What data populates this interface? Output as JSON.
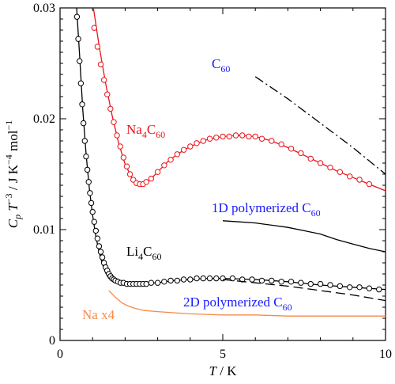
{
  "chart_data": {
    "type": "line",
    "title": "",
    "xlabel": {
      "var": "T",
      "unit": " / K"
    },
    "ylabel": {
      "var": "C",
      "sub": "p",
      "rest1": " T",
      "sup1": "−3",
      "rest2": " / J K",
      "sup2": "−4",
      "rest3": " mol",
      "sup3": "−1"
    },
    "xlim": [
      0,
      10
    ],
    "ylim": [
      0,
      0.03
    ],
    "x_ticks": [
      0,
      5,
      10
    ],
    "y_ticks": [
      0,
      0.01,
      0.02,
      0.03
    ],
    "x_tick_labels": [
      "0",
      "5",
      "10"
    ],
    "y_tick_labels": [
      "0",
      "0.01",
      "0.02",
      "0.03"
    ],
    "grid": false,
    "series": [
      {
        "id": "na4c60",
        "name": "Na4C60",
        "color": "#e8141b",
        "style": "solid",
        "markers": true,
        "line_points": [
          [
            1.0,
            0.0305
          ],
          [
            1.05,
            0.0295
          ],
          [
            1.2,
            0.0266
          ],
          [
            1.4,
            0.0232
          ],
          [
            1.6,
            0.0203
          ],
          [
            1.8,
            0.0178
          ],
          [
            2.0,
            0.0159
          ],
          [
            2.2,
            0.0147
          ],
          [
            2.4,
            0.0142
          ],
          [
            2.6,
            0.0142
          ],
          [
            2.8,
            0.0146
          ],
          [
            3.0,
            0.0152
          ],
          [
            3.3,
            0.0161
          ],
          [
            3.6,
            0.0168
          ],
          [
            4.0,
            0.0175
          ],
          [
            4.5,
            0.0181
          ],
          [
            5.0,
            0.0184
          ],
          [
            5.5,
            0.0185
          ],
          [
            6.0,
            0.0184
          ],
          [
            6.5,
            0.018
          ],
          [
            7.0,
            0.0174
          ],
          [
            7.5,
            0.0167
          ],
          [
            8.0,
            0.016
          ],
          [
            8.5,
            0.0153
          ],
          [
            9.0,
            0.0147
          ],
          [
            9.5,
            0.0141
          ],
          [
            10.0,
            0.0135
          ]
        ],
        "marker_points": [
          [
            1.05,
            0.0282
          ],
          [
            1.15,
            0.0265
          ],
          [
            1.25,
            0.0249
          ],
          [
            1.35,
            0.0235
          ],
          [
            1.45,
            0.0222
          ],
          [
            1.55,
            0.0209
          ],
          [
            1.65,
            0.0197
          ],
          [
            1.75,
            0.0185
          ],
          [
            1.85,
            0.0175
          ],
          [
            1.95,
            0.0165
          ],
          [
            2.05,
            0.0157
          ],
          [
            2.15,
            0.015
          ],
          [
            2.25,
            0.0145
          ],
          [
            2.35,
            0.0142
          ],
          [
            2.45,
            0.0141
          ],
          [
            2.55,
            0.0141
          ],
          [
            2.65,
            0.0143
          ],
          [
            2.8,
            0.0146
          ],
          [
            3.0,
            0.0152
          ],
          [
            3.2,
            0.0158
          ],
          [
            3.4,
            0.0163
          ],
          [
            3.6,
            0.0168
          ],
          [
            3.8,
            0.0172
          ],
          [
            4.0,
            0.0175
          ],
          [
            4.2,
            0.0178
          ],
          [
            4.4,
            0.018
          ],
          [
            4.6,
            0.0182
          ],
          [
            4.8,
            0.0183
          ],
          [
            5.0,
            0.0184
          ],
          [
            5.2,
            0.0184
          ],
          [
            5.4,
            0.0185
          ],
          [
            5.6,
            0.0185
          ],
          [
            5.8,
            0.0184
          ],
          [
            6.0,
            0.0184
          ],
          [
            6.2,
            0.0182
          ],
          [
            6.5,
            0.018
          ],
          [
            6.8,
            0.0177
          ],
          [
            7.1,
            0.0173
          ],
          [
            7.4,
            0.0169
          ],
          [
            7.7,
            0.0164
          ],
          [
            8.0,
            0.016
          ],
          [
            8.3,
            0.0156
          ],
          [
            8.6,
            0.0152
          ],
          [
            8.9,
            0.0148
          ],
          [
            9.2,
            0.0145
          ],
          [
            9.5,
            0.0141
          ]
        ]
      },
      {
        "id": "li4c60",
        "name": "Li4C60",
        "color": "#000000",
        "style": "solid",
        "markers": true,
        "line_points": [
          [
            0.5,
            0.0305
          ],
          [
            0.6,
            0.0258
          ],
          [
            0.7,
            0.0208
          ],
          [
            0.8,
            0.0168
          ],
          [
            0.9,
            0.0137
          ],
          [
            1.0,
            0.0113
          ],
          [
            1.1,
            0.0094
          ],
          [
            1.2,
            0.008
          ],
          [
            1.3,
            0.0069
          ],
          [
            1.4,
            0.0061
          ],
          [
            1.5,
            0.0056
          ],
          [
            1.7,
            0.0053
          ],
          [
            2.0,
            0.0051
          ],
          [
            2.5,
            0.0051
          ],
          [
            3.0,
            0.0052
          ],
          [
            3.5,
            0.0054
          ],
          [
            4.0,
            0.0055
          ],
          [
            4.5,
            0.0056
          ],
          [
            5.0,
            0.0056
          ],
          [
            6.0,
            0.0055
          ],
          [
            7.0,
            0.0053
          ],
          [
            8.0,
            0.005
          ],
          [
            9.0,
            0.0048
          ],
          [
            10.0,
            0.0046
          ]
        ],
        "marker_points": [
          [
            0.52,
            0.0292
          ],
          [
            0.56,
            0.0272
          ],
          [
            0.6,
            0.0252
          ],
          [
            0.64,
            0.0232
          ],
          [
            0.68,
            0.0213
          ],
          [
            0.72,
            0.0196
          ],
          [
            0.76,
            0.018
          ],
          [
            0.8,
            0.0166
          ],
          [
            0.84,
            0.0154
          ],
          [
            0.88,
            0.0143
          ],
          [
            0.92,
            0.0133
          ],
          [
            0.96,
            0.0124
          ],
          [
            1.0,
            0.0116
          ],
          [
            1.05,
            0.0107
          ],
          [
            1.1,
            0.0099
          ],
          [
            1.15,
            0.0092
          ],
          [
            1.2,
            0.0085
          ],
          [
            1.25,
            0.008
          ],
          [
            1.3,
            0.0075
          ],
          [
            1.35,
            0.007
          ],
          [
            1.4,
            0.0066
          ],
          [
            1.45,
            0.0063
          ],
          [
            1.5,
            0.006
          ],
          [
            1.55,
            0.0058
          ],
          [
            1.6,
            0.0056
          ],
          [
            1.65,
            0.0055
          ],
          [
            1.7,
            0.0054
          ],
          [
            1.78,
            0.0053
          ],
          [
            1.86,
            0.0052
          ],
          [
            1.95,
            0.0052
          ],
          [
            2.05,
            0.0051
          ],
          [
            2.15,
            0.0051
          ],
          [
            2.25,
            0.0051
          ],
          [
            2.35,
            0.0051
          ],
          [
            2.45,
            0.0051
          ],
          [
            2.55,
            0.0051
          ],
          [
            2.65,
            0.0051
          ],
          [
            2.8,
            0.0052
          ],
          [
            3.0,
            0.0052
          ],
          [
            3.2,
            0.0053
          ],
          [
            3.4,
            0.0054
          ],
          [
            3.6,
            0.0054
          ],
          [
            3.8,
            0.0055
          ],
          [
            4.0,
            0.0055
          ],
          [
            4.2,
            0.0056
          ],
          [
            4.4,
            0.0056
          ],
          [
            4.6,
            0.0056
          ],
          [
            4.8,
            0.0056
          ],
          [
            5.0,
            0.0056
          ],
          [
            5.3,
            0.0056
          ],
          [
            5.6,
            0.0055
          ],
          [
            5.9,
            0.0055
          ],
          [
            6.2,
            0.0054
          ],
          [
            6.5,
            0.0054
          ],
          [
            6.8,
            0.0053
          ],
          [
            7.1,
            0.0053
          ],
          [
            7.4,
            0.0052
          ],
          [
            7.7,
            0.0051
          ],
          [
            8.0,
            0.0051
          ],
          [
            8.3,
            0.005
          ],
          [
            8.6,
            0.0049
          ],
          [
            8.9,
            0.0048
          ],
          [
            9.2,
            0.0048
          ],
          [
            9.5,
            0.0047
          ],
          [
            9.8,
            0.0046
          ]
        ]
      },
      {
        "id": "c60",
        "name": "C60",
        "color": "#000000",
        "style": "dashdot",
        "markers": false,
        "line_points": [
          [
            6.0,
            0.0238
          ],
          [
            7.0,
            0.0218
          ],
          [
            8.0,
            0.0196
          ],
          [
            9.0,
            0.0174
          ],
          [
            10.0,
            0.015
          ]
        ]
      },
      {
        "id": "poly1d",
        "name": "1D polymerized C60",
        "color": "#000000",
        "style": "solid",
        "markers": false,
        "line_points": [
          [
            5.0,
            0.0108
          ],
          [
            5.5,
            0.0107
          ],
          [
            6.0,
            0.0106
          ],
          [
            6.5,
            0.0104
          ],
          [
            7.0,
            0.0102
          ],
          [
            7.5,
            0.0099
          ],
          [
            8.0,
            0.0096
          ],
          [
            8.5,
            0.0091
          ],
          [
            9.0,
            0.0087
          ],
          [
            9.5,
            0.0083
          ],
          [
            10.0,
            0.008
          ]
        ]
      },
      {
        "id": "poly2d",
        "name": "2D polymerized C60",
        "color": "#000000",
        "style": "dashed",
        "markers": false,
        "line_points": [
          [
            5.0,
            0.0055
          ],
          [
            6.0,
            0.0052
          ],
          [
            7.0,
            0.0049
          ],
          [
            8.0,
            0.0045
          ],
          [
            9.0,
            0.0041
          ],
          [
            10.0,
            0.0036
          ]
        ]
      },
      {
        "id": "nax4",
        "name": "Na x4",
        "color": "#f58a4b",
        "style": "solid",
        "markers": false,
        "line_points": [
          [
            1.5,
            0.0045
          ],
          [
            1.7,
            0.0039
          ],
          [
            1.9,
            0.0034
          ],
          [
            2.1,
            0.0031
          ],
          [
            2.3,
            0.0029
          ],
          [
            2.6,
            0.0027
          ],
          [
            3.0,
            0.0026
          ],
          [
            3.5,
            0.0025
          ],
          [
            4.0,
            0.0024
          ],
          [
            5.0,
            0.0023
          ],
          [
            6.0,
            0.0023
          ],
          [
            7.0,
            0.0022
          ],
          [
            8.0,
            0.0022
          ],
          [
            9.0,
            0.0022
          ],
          [
            10.0,
            0.0022
          ]
        ]
      }
    ],
    "annotations": [
      {
        "id": "c60",
        "color": "#1a1aff",
        "base": "C",
        "sub": "60",
        "prefix": "",
        "post": ""
      },
      {
        "id": "na4c60",
        "color": "#e8141b",
        "base": "Na",
        "sub": "4",
        "prefix": "",
        "post": "C",
        "sub2": "60"
      },
      {
        "id": "poly1d",
        "color": "#1a1aff",
        "prefix": "1D polymerized ",
        "base": "C",
        "sub": "60",
        "post": ""
      },
      {
        "id": "li4c60",
        "color": "#000000",
        "base": "Li",
        "sub": "4",
        "prefix": "",
        "post": "C",
        "sub2": "60"
      },
      {
        "id": "poly2d",
        "color": "#1a1aff",
        "prefix": "2D polymerized ",
        "base": "C",
        "sub": "60",
        "post": ""
      },
      {
        "id": "nax4",
        "color": "#f58a4b",
        "prefix": "Na x4",
        "base": "",
        "sub": "",
        "post": ""
      }
    ]
  }
}
